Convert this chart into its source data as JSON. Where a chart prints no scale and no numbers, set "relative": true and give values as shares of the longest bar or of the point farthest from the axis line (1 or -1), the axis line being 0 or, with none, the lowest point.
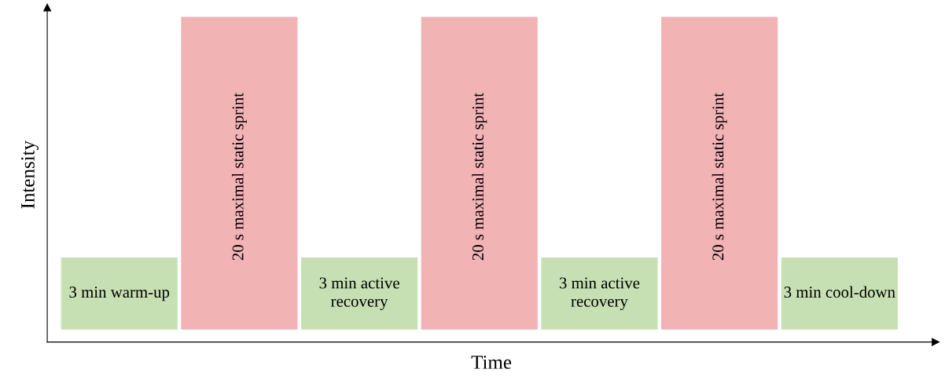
{
  "chart_data": {
    "type": "bar",
    "relative": true,
    "xlabel": "Time",
    "ylabel": "Intensity",
    "categories": [
      "3 min warm-up",
      "20 s maximal static sprint",
      "3 min active\nrecovery",
      "20 s maximal static sprint",
      "3 min active\nrecovery",
      "20 s maximal static sprint",
      "3 min cool-down"
    ],
    "values": [
      0.23,
      1,
      0.23,
      1,
      0.23,
      1,
      0.23
    ],
    "colors": [
      "#c6e0b4",
      "#f2b3b5",
      "#c6e0b4",
      "#f2b3b5",
      "#c6e0b4",
      "#f2b3b5",
      "#c6e0b4"
    ],
    "grid": false,
    "legend": false
  }
}
